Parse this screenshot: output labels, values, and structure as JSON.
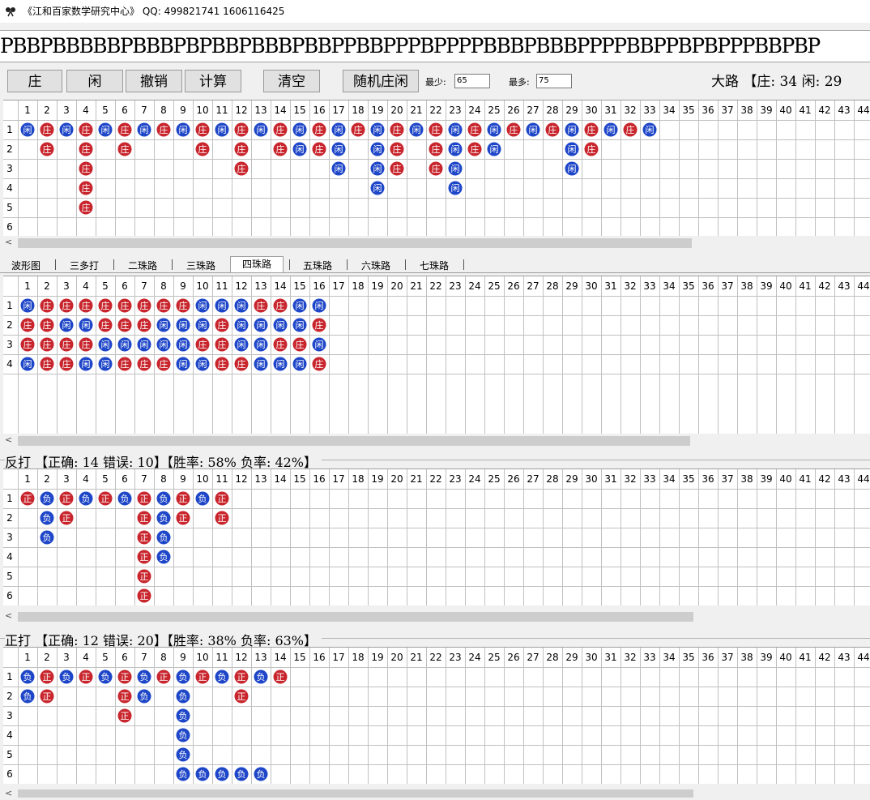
{
  "app": {
    "title": "《江和百家数学研究中心》 QQ: 499821741 1606116425"
  },
  "sequence": "PBBPBBBBBPBBBPBPBBPBBBPBBPPBBPPPBPPPPBBBPBBBPPPPBBPPBPBPPPBBPBP",
  "toolbar": {
    "buttons": [
      {
        "name": "banker-button",
        "label": "庄"
      },
      {
        "name": "player-button",
        "label": "闲"
      },
      {
        "name": "undo-button",
        "label": "撤销"
      },
      {
        "name": "calc-button",
        "label": "计算"
      },
      {
        "name": "clear-button",
        "label": "清空"
      },
      {
        "name": "random-button",
        "label": "随机庄闲"
      }
    ],
    "min_label": "最少:",
    "min_value": "65",
    "max_label": "最多:",
    "max_value": "75",
    "road_summary": "大路 【庄: 34 闲: 29"
  },
  "colors": {
    "banker": "#c8252d",
    "player": "#1e46c8",
    "grid_line": "#c0c0c0"
  },
  "column_numbers": [
    1,
    2,
    3,
    4,
    5,
    6,
    7,
    8,
    9,
    10,
    11,
    12,
    13,
    14,
    15,
    16,
    17,
    18,
    19,
    20,
    21,
    22,
    23,
    24,
    25,
    26,
    27,
    28,
    29,
    30,
    31,
    32,
    33,
    34,
    35,
    36,
    37,
    38,
    39,
    40,
    41,
    42,
    43,
    44
  ],
  "big_road": {
    "row_labels": [
      "1",
      "2",
      "3",
      "4",
      "5",
      "6"
    ],
    "columns": [
      "P",
      "BB",
      "P",
      "BBBBB",
      "P",
      "BB",
      "P",
      "B",
      "P",
      "BB",
      "P",
      "BBB",
      "P",
      "BB",
      "PP",
      "BB",
      "PPP",
      "B",
      "PPPP",
      "BBB",
      "P",
      "BBB",
      "PPPP",
      "BB",
      "PP",
      "B",
      "P",
      "B",
      "PPP",
      "BB",
      "P",
      "B",
      "P"
    ]
  },
  "tabs": [
    "波形图",
    "三多打",
    "二珠路",
    "三珠路",
    "四珠路",
    "五珠路",
    "六珠路",
    "七珠路"
  ],
  "active_tab": "四珠路",
  "bead_road": {
    "row_labels": [
      "1",
      "2",
      "3",
      "4"
    ],
    "rows": [
      "PBBBBBBBBPPPBBPP",
      "BBPPBBBPPPBPPPPB",
      "BBBBPPPPPBBPPBBP",
      "PBBPPBBBPPBBPPPB"
    ],
    "symbols": {
      "B": "庄",
      "P": "闲"
    }
  },
  "reverse": {
    "heading": "反打 【正确: 14 错误: 10】【胜率: 58% 负率: 42%】",
    "row_labels": [
      "1",
      "2",
      "3",
      "4",
      "5",
      "6"
    ],
    "columns": [
      "W",
      "LLL",
      "WW",
      "L",
      "W",
      "L",
      "WWWWWW",
      "LLLL",
      "WW",
      "L",
      "WW"
    ],
    "symbols": {
      "W": "正",
      "L": "负"
    }
  },
  "forward": {
    "heading": "正打 【正确: 12 错误: 20】【胜率: 38% 负率: 63%】",
    "row_labels": [
      "1",
      "2",
      "3",
      "4",
      "5",
      "6"
    ],
    "columns": [
      "LL",
      "WW",
      "L",
      "W",
      "L",
      "WWW",
      "LL",
      "W",
      "LLLLLLLLLL",
      "W",
      "L",
      "WW",
      "L",
      "W"
    ],
    "symbols": {
      "W": "正",
      "L": "负"
    }
  }
}
